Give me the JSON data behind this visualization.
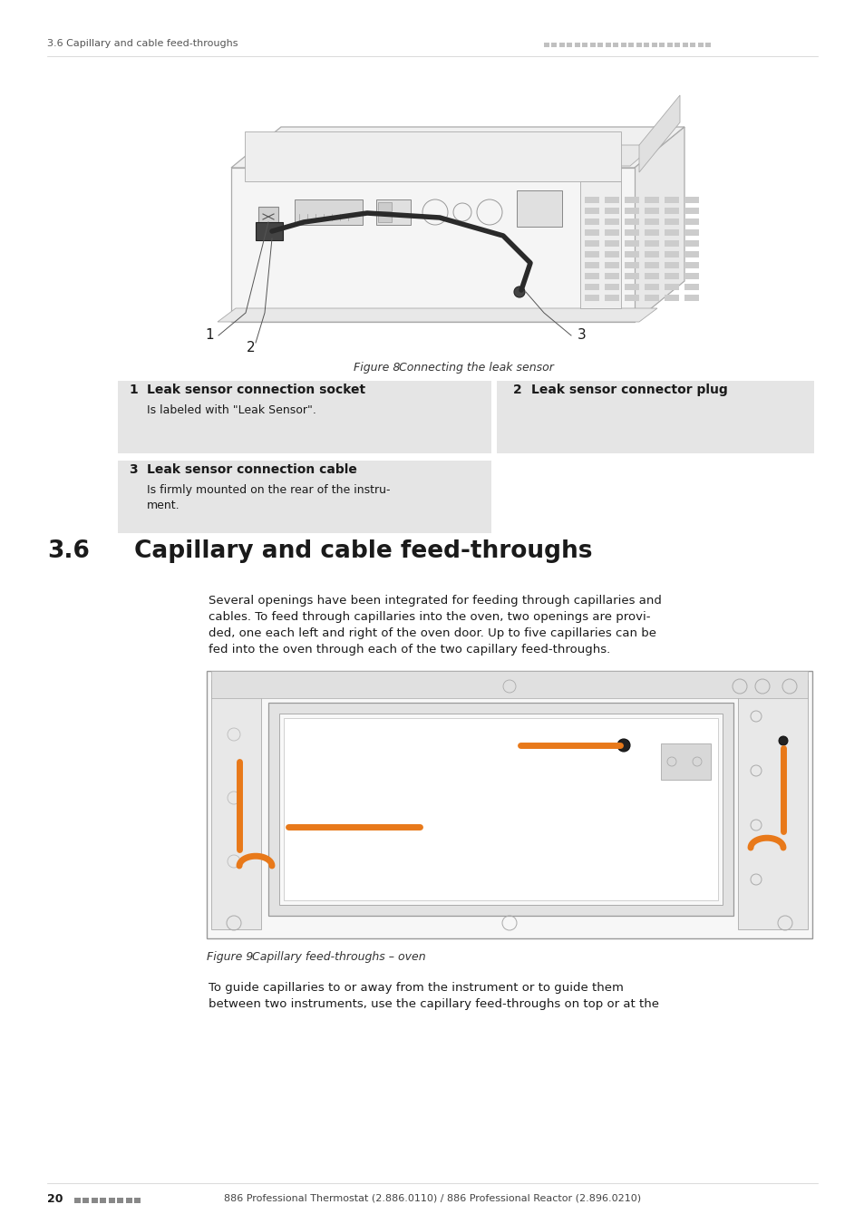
{
  "page_header_left": "3.6 Capillary and cable feed-throughs",
  "page_header_right_color": "#c0c0c0",
  "section_number": "3.6",
  "section_title": "Capillary and cable feed-throughs",
  "figure8_caption_num": "Figure 8",
  "figure8_caption_text": "    Connecting the leak sensor",
  "figure9_caption_num": "Figure 9",
  "figure9_caption_text": "    Capillary feed-throughs – oven",
  "body_text1_lines": [
    "Several openings have been integrated for feeding through capillaries and",
    "cables. To feed through capillaries into the oven, two openings are provi-",
    "ded, one each left and right of the oven door. Up to five capillaries can be",
    "fed into the oven through each of the two capillary feed-throughs."
  ],
  "body_text2_lines": [
    "To guide capillaries to or away from the instrument or to guide them",
    "between two instruments, use the capillary feed-throughs on top or at the"
  ],
  "table_bg": "#e5e5e5",
  "items": [
    {
      "num": "1",
      "title": "Leak sensor connection socket",
      "desc": "Is labeled with \"Leak Sensor\"."
    },
    {
      "num": "2",
      "title": "Leak sensor connector plug",
      "desc": ""
    },
    {
      "num": "3",
      "title": "Leak sensor connection cable",
      "desc": "Is firmly mounted on the rear of the instru-\nment."
    }
  ],
  "page_number": "20",
  "footer_text": "886 Professional Thermostat (2.886.0110) / 886 Professional Reactor (2.896.0210)",
  "footer_dots_color": "#888888",
  "orange_color": "#e8791a",
  "bg_color": "#ffffff",
  "text_color": "#1a1a1a",
  "line_color": "#aaaaaa",
  "dark_line": "#888888"
}
